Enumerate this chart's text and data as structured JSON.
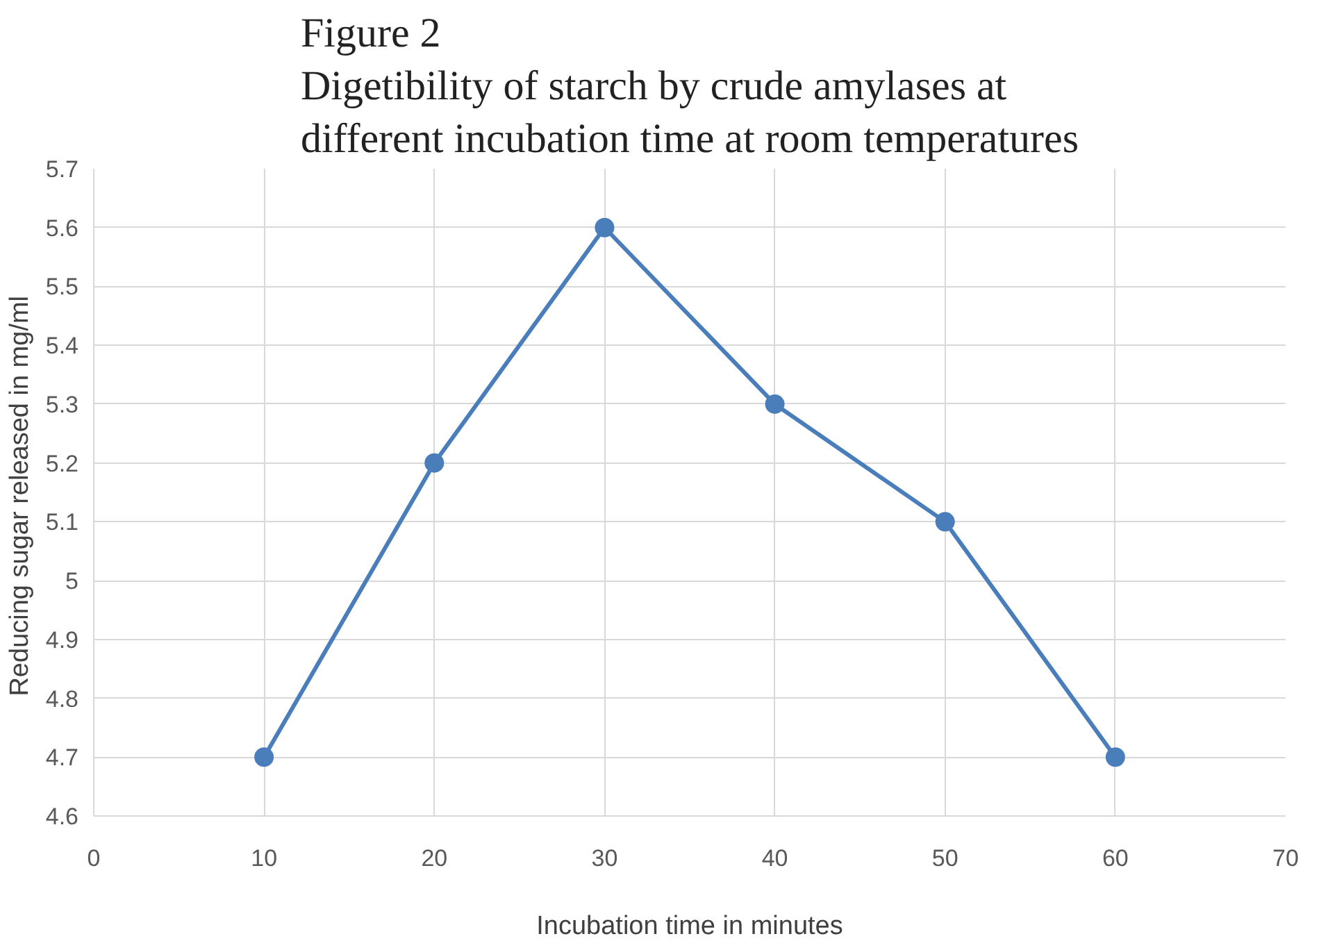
{
  "chart_data": {
    "type": "line",
    "title": "Figure 2\nDigetibility of starch by crude amylases at\ndifferent incubation time at room temperatures",
    "xlabel": "Incubation time in minutes",
    "ylabel": "Reducing sugar released  in mg/ml",
    "x": [
      10,
      20,
      30,
      40,
      50,
      60
    ],
    "series": [
      {
        "color": "#4a7ebb",
        "values": [
          4.7,
          5.2,
          5.6,
          5.3,
          5.1,
          4.7
        ]
      }
    ],
    "xlim": [
      0,
      70
    ],
    "xticks": [
      0,
      10,
      20,
      30,
      40,
      50,
      60,
      70
    ],
    "ylim": [
      4.6,
      5.7
    ],
    "yticks": [
      4.6,
      4.7,
      4.8,
      4.9,
      5,
      5.1,
      5.2,
      5.3,
      5.4,
      5.5,
      5.6,
      5.7
    ],
    "grid": true,
    "marker": "circle",
    "line_style": "solid"
  }
}
